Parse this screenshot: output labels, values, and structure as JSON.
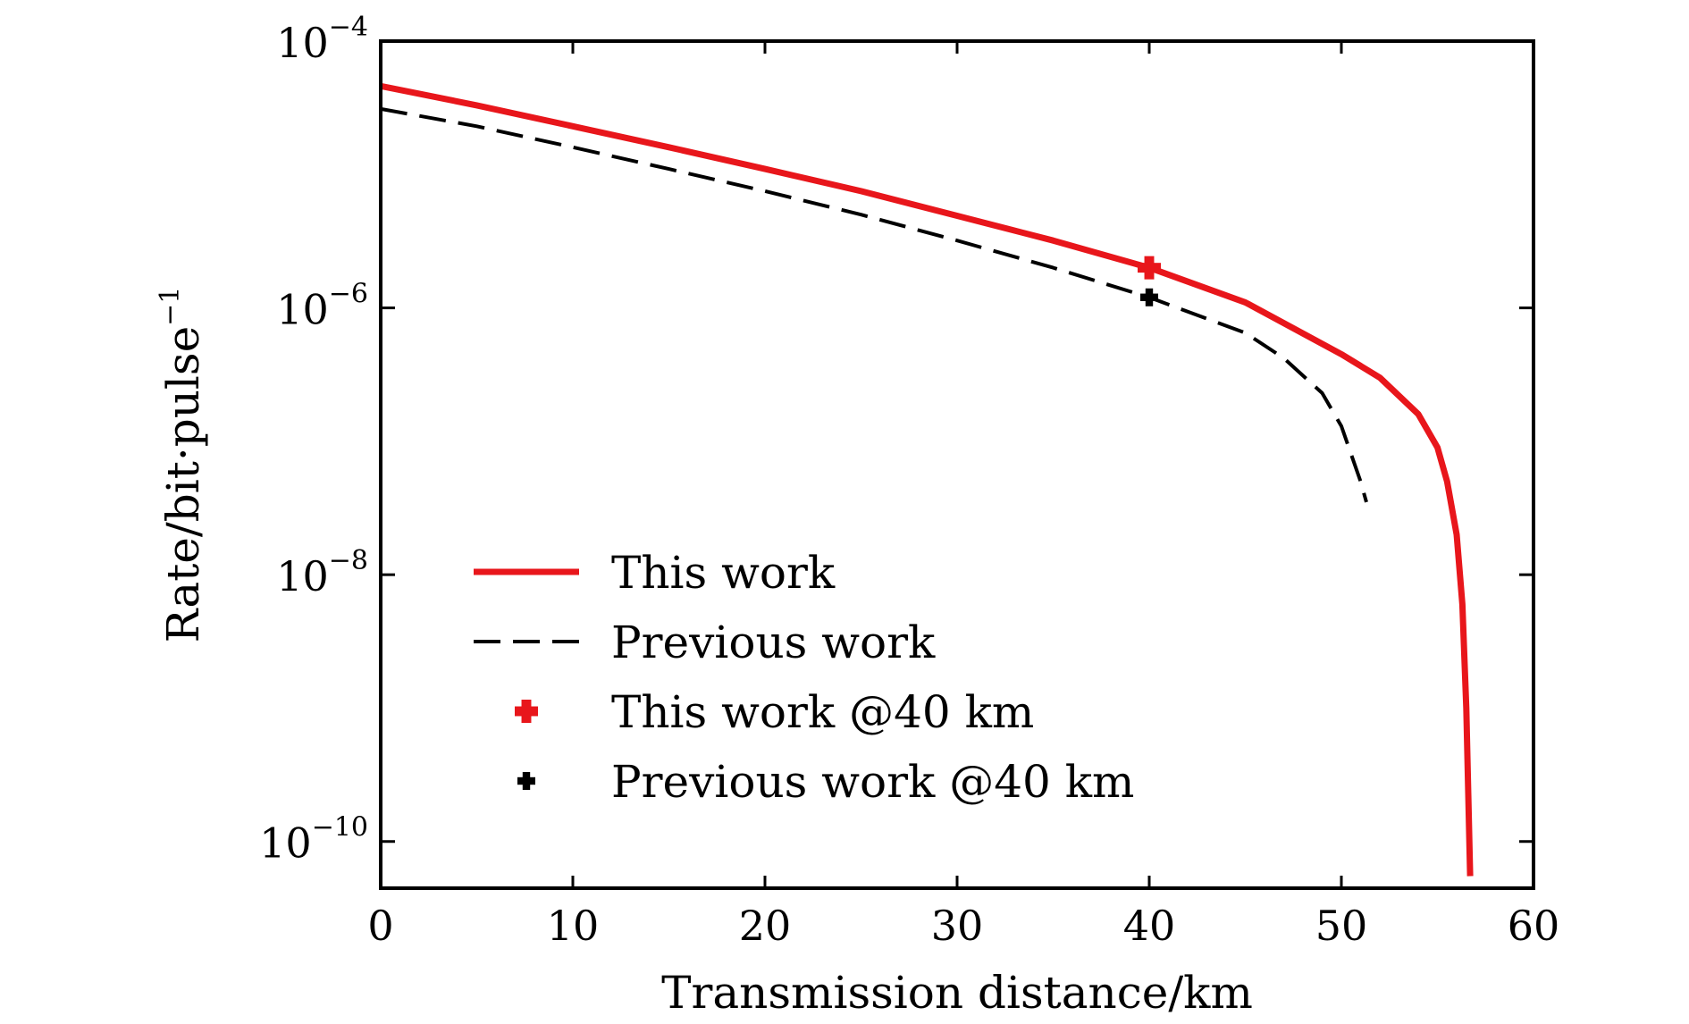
{
  "chart_data": {
    "type": "line",
    "title": "",
    "xlabel": "Transmission distance/km",
    "ylabel": "Rate/bit·pulse",
    "ylabel_superscript": "−1",
    "xlim": [
      0,
      60
    ],
    "ylim_log10": [
      -10.35,
      -4
    ],
    "yscale": "log",
    "grid": false,
    "legend_position": "lower-left",
    "x_ticks": [
      {
        "value": 0,
        "label": "0"
      },
      {
        "value": 10,
        "label": "10"
      },
      {
        "value": 20,
        "label": "20"
      },
      {
        "value": 30,
        "label": "30"
      },
      {
        "value": 40,
        "label": "40"
      },
      {
        "value": 50,
        "label": "50"
      },
      {
        "value": 60,
        "label": "60"
      }
    ],
    "y_ticks": [
      {
        "log10": -4,
        "base": "10",
        "exp": "−4"
      },
      {
        "log10": -6,
        "base": "10",
        "exp": "−6"
      },
      {
        "log10": -8,
        "base": "10",
        "exp": "−8"
      },
      {
        "log10": -10,
        "base": "10",
        "exp": "−10"
      }
    ],
    "series": [
      {
        "name": "This work",
        "style": "solid",
        "color": "#e8161b",
        "x": [
          0,
          5,
          10,
          15,
          20,
          25,
          30,
          35,
          40,
          45,
          50,
          52,
          54,
          55,
          55.5,
          56,
          56.3,
          56.5,
          56.7
        ],
        "y": [
          4.6e-05,
          3.3e-05,
          2.3e-05,
          1.6e-05,
          1.1e-05,
          7.5e-06,
          4.9e-06,
          3.2e-06,
          2e-06,
          1.1e-06,
          4.5e-07,
          3e-07,
          1.6e-07,
          9e-08,
          5e-08,
          2e-08,
          6e-09,
          1e-09,
          5.5e-11
        ]
      },
      {
        "name": "Previous work",
        "style": "dashed",
        "color": "#000000",
        "x": [
          0,
          5,
          10,
          15,
          20,
          25,
          30,
          35,
          40,
          45,
          47,
          49,
          50,
          51,
          51.3
        ],
        "y": [
          3.1e-05,
          2.3e-05,
          1.6e-05,
          1.1e-05,
          7.5e-06,
          5e-06,
          3.2e-06,
          2e-06,
          1.2e-06,
          6.5e-07,
          4.2e-07,
          2.3e-07,
          1.3e-07,
          5e-08,
          3.5e-08
        ]
      },
      {
        "name": "This work @40 km",
        "style": "marker",
        "marker": "plus-bold",
        "color": "#e8161b",
        "x": [
          40
        ],
        "y": [
          2e-06
        ]
      },
      {
        "name": "Previous work @40 km",
        "style": "marker",
        "marker": "plus-bold",
        "color": "#000000",
        "x": [
          40
        ],
        "y": [
          1.2e-06
        ]
      }
    ]
  }
}
